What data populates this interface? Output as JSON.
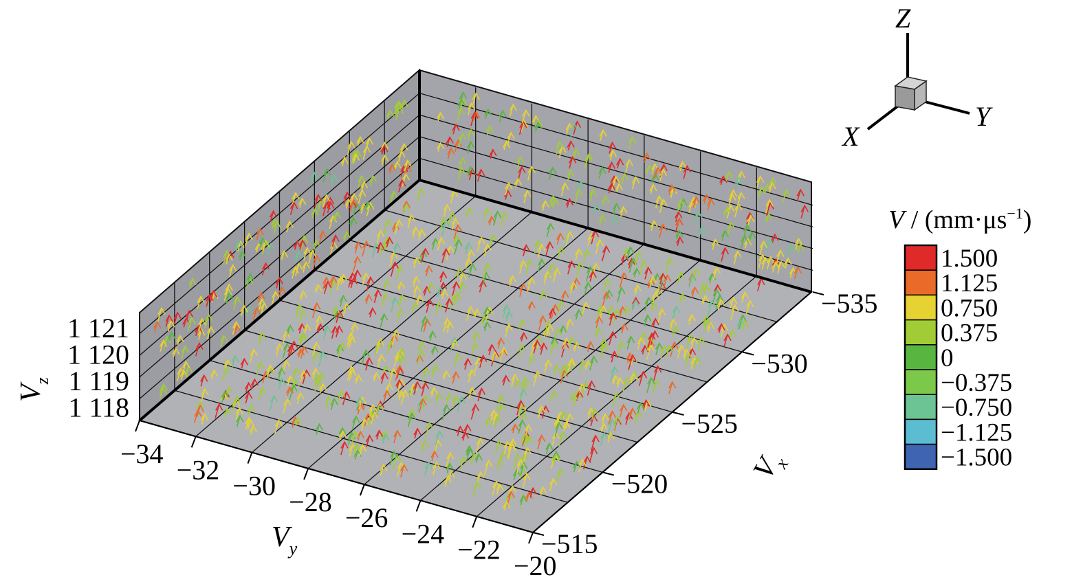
{
  "chart_data": {
    "type": "3d vector field",
    "axes": {
      "x": {
        "label": "V",
        "label_sub": "x",
        "ticks": [
          "−535",
          "−530",
          "−525",
          "−520",
          "−515"
        ],
        "range": [
          -535,
          -515
        ]
      },
      "y": {
        "label": "V",
        "label_sub": "y",
        "ticks": [
          "−34",
          "−32",
          "−30",
          "−28",
          "−26",
          "−24",
          "−22",
          "−20"
        ],
        "range": [
          -34,
          -20
        ]
      },
      "z": {
        "label": "V",
        "label_sub": "z",
        "ticks": [
          "1 121",
          "1 120",
          "1 119",
          "1 118"
        ],
        "range": [
          1118,
          1121
        ]
      }
    },
    "legend": {
      "title_var": "V",
      "title_sep": " / ",
      "title_unit": "(mm·μs",
      "title_exp": "−1",
      "title_close": ")",
      "placement": "right",
      "levels": [
        {
          "label": "1.500",
          "color": "#e02a2a"
        },
        {
          "label": "1.125",
          "color": "#ea6a2a"
        },
        {
          "label": "0.750",
          "color": "#e6d232"
        },
        {
          "label": "0.375",
          "color": "#a2cc36"
        },
        {
          "label": "0",
          "color": "#58b540"
        },
        {
          "label": "−0.375",
          "color": "#7cc84a"
        },
        {
          "label": "−0.750",
          "color": "#6cc394"
        },
        {
          "label": "−1.125",
          "color": "#5cbcd2"
        },
        {
          "label": "−1.500",
          "color": "#3e64b2"
        }
      ]
    },
    "orientation_triad": {
      "labels": [
        "Z",
        "Y",
        "X"
      ]
    },
    "grid": true,
    "background_color": "#b1b2b6"
  }
}
